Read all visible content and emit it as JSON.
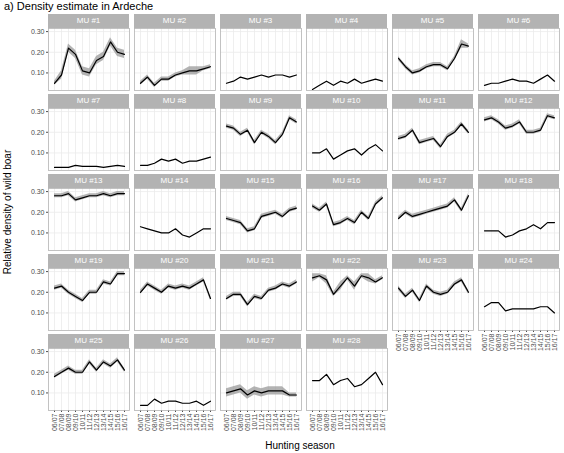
{
  "chart_data": {
    "type": "line",
    "title": "a) Density estimate in Ardeche",
    "x_label": "Hunting season",
    "y_label": "Relative density of wild boar",
    "x": [
      "06/07",
      "07/08",
      "08/09",
      "09/10",
      "10/11",
      "11/12",
      "12/13",
      "13/14",
      "14/15",
      "15/16",
      "16/17"
    ],
    "ylim": [
      0.015,
      0.315
    ],
    "yticks": [
      0.1,
      0.2,
      0.3
    ],
    "grid": true,
    "color": "#000000",
    "series": [
      {
        "name": "MU #1",
        "values": [
          0.05,
          0.09,
          0.22,
          0.19,
          0.11,
          0.1,
          0.16,
          0.18,
          0.25,
          0.2,
          0.19
        ],
        "lower": [
          0.04,
          0.07,
          0.2,
          0.17,
          0.09,
          0.08,
          0.14,
          0.16,
          0.23,
          0.18,
          0.17
        ],
        "upper": [
          0.06,
          0.11,
          0.24,
          0.21,
          0.13,
          0.12,
          0.18,
          0.2,
          0.27,
          0.22,
          0.21
        ]
      },
      {
        "name": "MU #2",
        "values": [
          0.05,
          0.08,
          0.04,
          0.07,
          0.07,
          0.09,
          0.1,
          0.11,
          0.11,
          0.12,
          0.13
        ],
        "lower": [
          0.04,
          0.07,
          0.03,
          0.06,
          0.06,
          0.08,
          0.09,
          0.09,
          0.09,
          0.11,
          0.12
        ],
        "upper": [
          0.06,
          0.09,
          0.05,
          0.08,
          0.08,
          0.1,
          0.11,
          0.13,
          0.13,
          0.13,
          0.14
        ]
      },
      {
        "name": "MU #3",
        "values": [
          0.05,
          0.06,
          0.08,
          0.07,
          0.08,
          0.09,
          0.08,
          0.09,
          0.09,
          0.08,
          0.09
        ]
      },
      {
        "name": "MU #4",
        "values": [
          0.02,
          0.04,
          0.06,
          0.04,
          0.06,
          0.05,
          0.07,
          0.05,
          0.06,
          0.07,
          0.06
        ]
      },
      {
        "name": "MU #5",
        "values": [
          0.17,
          0.13,
          0.1,
          0.11,
          0.13,
          0.14,
          0.14,
          0.12,
          0.17,
          0.24,
          0.23
        ],
        "lower": [
          0.16,
          0.12,
          0.09,
          0.1,
          0.12,
          0.13,
          0.13,
          0.11,
          0.16,
          0.22,
          0.22
        ],
        "upper": [
          0.18,
          0.14,
          0.11,
          0.12,
          0.14,
          0.15,
          0.15,
          0.13,
          0.18,
          0.26,
          0.24
        ]
      },
      {
        "name": "MU #6",
        "values": [
          0.04,
          0.05,
          0.05,
          0.06,
          0.07,
          0.06,
          0.06,
          0.05,
          0.07,
          0.09,
          0.06
        ]
      },
      {
        "name": "MU #7",
        "values": [
          0.03,
          0.03,
          0.03,
          0.04,
          0.035,
          0.035,
          0.035,
          0.03,
          0.035,
          0.04,
          0.035
        ]
      },
      {
        "name": "MU #8",
        "values": [
          0.04,
          0.04,
          0.05,
          0.07,
          0.06,
          0.07,
          0.05,
          0.06,
          0.06,
          0.07,
          0.08
        ]
      },
      {
        "name": "MU #9",
        "values": [
          0.23,
          0.22,
          0.19,
          0.21,
          0.15,
          0.2,
          0.18,
          0.15,
          0.19,
          0.27,
          0.25
        ],
        "lower": [
          0.22,
          0.21,
          0.18,
          0.2,
          0.14,
          0.19,
          0.17,
          0.14,
          0.18,
          0.26,
          0.24
        ],
        "upper": [
          0.24,
          0.23,
          0.2,
          0.22,
          0.16,
          0.21,
          0.19,
          0.16,
          0.2,
          0.28,
          0.26
        ]
      },
      {
        "name": "MU #10",
        "values": [
          0.1,
          0.1,
          0.12,
          0.07,
          0.09,
          0.11,
          0.12,
          0.09,
          0.12,
          0.14,
          0.11
        ]
      },
      {
        "name": "MU #11",
        "values": [
          0.17,
          0.18,
          0.21,
          0.15,
          0.16,
          0.17,
          0.13,
          0.18,
          0.2,
          0.24,
          0.2
        ],
        "lower": [
          0.16,
          0.17,
          0.2,
          0.14,
          0.15,
          0.16,
          0.12,
          0.17,
          0.19,
          0.23,
          0.19
        ],
        "upper": [
          0.18,
          0.19,
          0.22,
          0.16,
          0.17,
          0.18,
          0.14,
          0.19,
          0.21,
          0.25,
          0.21
        ]
      },
      {
        "name": "MU #12",
        "values": [
          0.26,
          0.27,
          0.25,
          0.22,
          0.23,
          0.25,
          0.2,
          0.2,
          0.21,
          0.28,
          0.27
        ],
        "lower": [
          0.25,
          0.26,
          0.24,
          0.21,
          0.22,
          0.24,
          0.19,
          0.19,
          0.2,
          0.27,
          0.26
        ],
        "upper": [
          0.27,
          0.28,
          0.26,
          0.23,
          0.24,
          0.26,
          0.21,
          0.21,
          0.22,
          0.29,
          0.28
        ]
      },
      {
        "name": "MU #13",
        "values": [
          0.28,
          0.28,
          0.29,
          0.26,
          0.27,
          0.28,
          0.28,
          0.29,
          0.28,
          0.29,
          0.29
        ],
        "lower": [
          0.27,
          0.27,
          0.28,
          0.25,
          0.26,
          0.27,
          0.27,
          0.28,
          0.27,
          0.28,
          0.28
        ],
        "upper": [
          0.29,
          0.29,
          0.3,
          0.27,
          0.28,
          0.29,
          0.29,
          0.3,
          0.29,
          0.3,
          0.3
        ]
      },
      {
        "name": "MU #14",
        "values": [
          0.13,
          0.12,
          0.11,
          0.1,
          0.1,
          0.12,
          0.09,
          0.08,
          0.1,
          0.12,
          0.12
        ]
      },
      {
        "name": "MU #15",
        "values": [
          0.17,
          0.16,
          0.15,
          0.11,
          0.12,
          0.18,
          0.19,
          0.2,
          0.18,
          0.21,
          0.22
        ],
        "lower": [
          0.16,
          0.15,
          0.14,
          0.1,
          0.11,
          0.17,
          0.18,
          0.19,
          0.17,
          0.2,
          0.21
        ],
        "upper": [
          0.18,
          0.17,
          0.16,
          0.12,
          0.13,
          0.19,
          0.2,
          0.21,
          0.19,
          0.22,
          0.23
        ]
      },
      {
        "name": "MU #16",
        "values": [
          0.23,
          0.21,
          0.24,
          0.14,
          0.15,
          0.17,
          0.15,
          0.2,
          0.17,
          0.24,
          0.27
        ],
        "lower": [
          0.22,
          0.2,
          0.23,
          0.13,
          0.14,
          0.16,
          0.14,
          0.19,
          0.16,
          0.23,
          0.26
        ],
        "upper": [
          0.24,
          0.22,
          0.25,
          0.15,
          0.16,
          0.18,
          0.16,
          0.21,
          0.18,
          0.25,
          0.28
        ]
      },
      {
        "name": "MU #17",
        "values": [
          0.17,
          0.2,
          0.18,
          0.19,
          0.2,
          0.21,
          0.22,
          0.23,
          0.26,
          0.21,
          0.28
        ],
        "lower": [
          0.16,
          0.19,
          0.17,
          0.18,
          0.19,
          0.2,
          0.21,
          0.22,
          0.25,
          0.2,
          0.27
        ],
        "upper": [
          0.18,
          0.21,
          0.19,
          0.2,
          0.21,
          0.22,
          0.23,
          0.24,
          0.27,
          0.22,
          0.29
        ]
      },
      {
        "name": "MU #18",
        "values": [
          0.11,
          0.11,
          0.11,
          0.08,
          0.09,
          0.11,
          0.12,
          0.14,
          0.12,
          0.15,
          0.15
        ]
      },
      {
        "name": "MU #19",
        "values": [
          0.22,
          0.23,
          0.2,
          0.18,
          0.16,
          0.2,
          0.2,
          0.25,
          0.24,
          0.29,
          0.29
        ],
        "lower": [
          0.21,
          0.22,
          0.19,
          0.17,
          0.15,
          0.19,
          0.19,
          0.24,
          0.23,
          0.28,
          0.28
        ],
        "upper": [
          0.23,
          0.24,
          0.21,
          0.19,
          0.17,
          0.21,
          0.21,
          0.26,
          0.25,
          0.3,
          0.3
        ]
      },
      {
        "name": "MU #20",
        "values": [
          0.2,
          0.24,
          0.22,
          0.2,
          0.23,
          0.22,
          0.23,
          0.22,
          0.24,
          0.26,
          0.17
        ],
        "lower": [
          0.19,
          0.23,
          0.21,
          0.19,
          0.22,
          0.21,
          0.22,
          0.21,
          0.23,
          0.25,
          0.16
        ],
        "upper": [
          0.21,
          0.25,
          0.23,
          0.21,
          0.24,
          0.23,
          0.24,
          0.23,
          0.25,
          0.27,
          0.18
        ]
      },
      {
        "name": "MU #21",
        "values": [
          0.17,
          0.19,
          0.19,
          0.14,
          0.18,
          0.17,
          0.21,
          0.22,
          0.24,
          0.23,
          0.25
        ],
        "lower": [
          0.16,
          0.18,
          0.18,
          0.13,
          0.17,
          0.16,
          0.2,
          0.21,
          0.23,
          0.22,
          0.24
        ],
        "upper": [
          0.18,
          0.2,
          0.2,
          0.15,
          0.19,
          0.18,
          0.22,
          0.23,
          0.25,
          0.24,
          0.26
        ]
      },
      {
        "name": "MU #22",
        "values": [
          0.27,
          0.28,
          0.26,
          0.19,
          0.23,
          0.27,
          0.23,
          0.28,
          0.27,
          0.25,
          0.27
        ],
        "lower": [
          0.25,
          0.27,
          0.24,
          0.18,
          0.21,
          0.26,
          0.21,
          0.27,
          0.25,
          0.24,
          0.26
        ],
        "upper": [
          0.29,
          0.29,
          0.28,
          0.2,
          0.25,
          0.28,
          0.25,
          0.29,
          0.29,
          0.26,
          0.28
        ]
      },
      {
        "name": "MU #23",
        "values": [
          0.22,
          0.18,
          0.21,
          0.16,
          0.23,
          0.2,
          0.19,
          0.2,
          0.24,
          0.26,
          0.2
        ],
        "lower": [
          0.21,
          0.17,
          0.2,
          0.15,
          0.22,
          0.19,
          0.18,
          0.19,
          0.23,
          0.25,
          0.19
        ],
        "upper": [
          0.23,
          0.19,
          0.22,
          0.17,
          0.24,
          0.21,
          0.2,
          0.21,
          0.25,
          0.27,
          0.21
        ]
      },
      {
        "name": "MU #24",
        "values": [
          0.13,
          0.15,
          0.15,
          0.11,
          0.12,
          0.12,
          0.12,
          0.12,
          0.13,
          0.13,
          0.1
        ]
      },
      {
        "name": "MU #25",
        "values": [
          0.18,
          0.2,
          0.22,
          0.2,
          0.2,
          0.25,
          0.21,
          0.25,
          0.23,
          0.26,
          0.21
        ],
        "lower": [
          0.17,
          0.19,
          0.21,
          0.19,
          0.19,
          0.24,
          0.2,
          0.24,
          0.22,
          0.25,
          0.2
        ],
        "upper": [
          0.19,
          0.21,
          0.23,
          0.21,
          0.21,
          0.26,
          0.22,
          0.26,
          0.24,
          0.27,
          0.22
        ]
      },
      {
        "name": "MU #26",
        "values": [
          0.04,
          0.04,
          0.07,
          0.05,
          0.06,
          0.06,
          0.05,
          0.05,
          0.06,
          0.04,
          0.06
        ]
      },
      {
        "name": "MU #27",
        "values": [
          0.1,
          0.11,
          0.12,
          0.09,
          0.11,
          0.1,
          0.11,
          0.11,
          0.11,
          0.09,
          0.09
        ],
        "lower": [
          0.08,
          0.09,
          0.1,
          0.07,
          0.09,
          0.08,
          0.09,
          0.09,
          0.09,
          0.08,
          0.08
        ],
        "upper": [
          0.12,
          0.13,
          0.14,
          0.11,
          0.13,
          0.12,
          0.13,
          0.13,
          0.13,
          0.1,
          0.1
        ]
      },
      {
        "name": "MU #28",
        "values": [
          0.16,
          0.16,
          0.19,
          0.14,
          0.16,
          0.17,
          0.13,
          0.14,
          0.17,
          0.2,
          0.14
        ]
      }
    ]
  }
}
